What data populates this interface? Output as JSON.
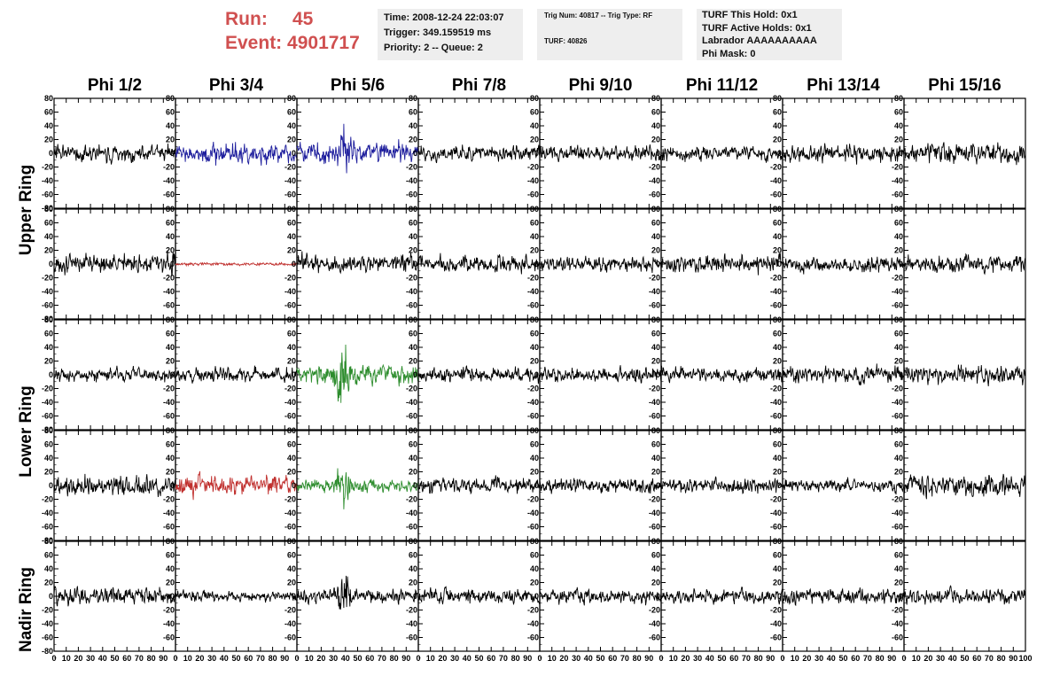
{
  "header": {
    "run_label": "Run:",
    "run_value": "45",
    "event_label": "Event:",
    "event_value": "4901717"
  },
  "info_box_1": {
    "time": "Time: 2008-12-24 22:03:07",
    "trigger": "Trigger: 349.159519 ms",
    "priority": "Priority: 2 -- Queue: 2"
  },
  "info_box_2": {
    "trig": "Trig Num: 40817 -- Trig Type: RF",
    "turf": "TURF: 40826"
  },
  "info_box_3": {
    "hold": "TURF This Hold: 0x1",
    "active": "TURF Active Holds: 0x1",
    "labrador": "Labrador AAAAAAAAAA",
    "phimask": "Phi Mask: 0"
  },
  "phi_labels": [
    "Phi 1/2",
    "Phi 3/4",
    "Phi 5/6",
    "Phi 7/8",
    "Phi 9/10",
    "Phi 11/12",
    "Phi 13/14",
    "Phi 15/16"
  ],
  "ring_labels": {
    "upper": "Upper Ring",
    "lower": "Lower Ring",
    "nadir": "Nadir Ring"
  },
  "chart_data": {
    "type": "line",
    "rows": 5,
    "cols": 8,
    "xlim": [
      0,
      100
    ],
    "ylim": [
      -80,
      80
    ],
    "x_ticks": [
      0,
      10,
      20,
      30,
      40,
      50,
      60,
      70,
      80,
      90
    ],
    "x_ticks_last": [
      0,
      10,
      20,
      30,
      40,
      50,
      60,
      70,
      80,
      90,
      100
    ],
    "y_ticks": [
      -80,
      -60,
      -40,
      -20,
      0,
      20,
      40,
      60,
      80
    ],
    "y_tick_labels_first_col": [
      "-80",
      "-60",
      "-40",
      "-20",
      "0",
      "20",
      "40",
      "60",
      "80"
    ],
    "y_tick_labels_other_cols": [
      "-60",
      "-40",
      "-20",
      "0",
      "20",
      "40",
      "60",
      "80"
    ],
    "colors": {
      "default": "#000000",
      "blue": "#1c1c9c",
      "red": "#c0302e",
      "green": "#2c8c2c"
    },
    "panels": [
      {
        "row": 0,
        "col": 0,
        "color": "default",
        "amplitude": 11,
        "burst": 0,
        "burst_center": 0,
        "seed": 1
      },
      {
        "row": 0,
        "col": 1,
        "color": "blue",
        "amplitude": 14,
        "burst": 0,
        "burst_center": 0,
        "seed": 2
      },
      {
        "row": 0,
        "col": 2,
        "color": "blue",
        "amplitude": 15,
        "burst": 20,
        "burst_center": 40,
        "seed": 3
      },
      {
        "row": 0,
        "col": 3,
        "color": "default",
        "amplitude": 10,
        "burst": 0,
        "burst_center": 0,
        "seed": 4
      },
      {
        "row": 0,
        "col": 4,
        "color": "default",
        "amplitude": 11,
        "burst": 0,
        "burst_center": 0,
        "seed": 5
      },
      {
        "row": 0,
        "col": 5,
        "color": "default",
        "amplitude": 10,
        "burst": 0,
        "burst_center": 0,
        "seed": 6
      },
      {
        "row": 0,
        "col": 6,
        "color": "default",
        "amplitude": 12,
        "burst": 0,
        "burst_center": 0,
        "seed": 7
      },
      {
        "row": 0,
        "col": 7,
        "color": "default",
        "amplitude": 14,
        "burst": 0,
        "burst_center": 0,
        "seed": 8
      },
      {
        "row": 1,
        "col": 0,
        "color": "default",
        "amplitude": 14,
        "burst": 0,
        "burst_center": 0,
        "seed": 9
      },
      {
        "row": 1,
        "col": 1,
        "color": "red",
        "amplitude": 2,
        "burst": 0,
        "burst_center": 0,
        "seed": 10
      },
      {
        "row": 1,
        "col": 2,
        "color": "default",
        "amplitude": 13,
        "burst": 0,
        "burst_center": 0,
        "seed": 11
      },
      {
        "row": 1,
        "col": 3,
        "color": "default",
        "amplitude": 12,
        "burst": 0,
        "burst_center": 0,
        "seed": 12
      },
      {
        "row": 1,
        "col": 4,
        "color": "default",
        "amplitude": 11,
        "burst": 0,
        "burst_center": 0,
        "seed": 13
      },
      {
        "row": 1,
        "col": 5,
        "color": "default",
        "amplitude": 12,
        "burst": 0,
        "burst_center": 0,
        "seed": 14
      },
      {
        "row": 1,
        "col": 6,
        "color": "default",
        "amplitude": 11,
        "burst": 0,
        "burst_center": 0,
        "seed": 15
      },
      {
        "row": 1,
        "col": 7,
        "color": "default",
        "amplitude": 12,
        "burst": 0,
        "burst_center": 0,
        "seed": 16
      },
      {
        "row": 2,
        "col": 0,
        "color": "default",
        "amplitude": 10,
        "burst": 0,
        "burst_center": 0,
        "seed": 17
      },
      {
        "row": 2,
        "col": 1,
        "color": "default",
        "amplitude": 10,
        "burst": 0,
        "burst_center": 0,
        "seed": 18
      },
      {
        "row": 2,
        "col": 2,
        "color": "green",
        "amplitude": 14,
        "burst": 38,
        "burst_center": 38,
        "seed": 19
      },
      {
        "row": 2,
        "col": 3,
        "color": "default",
        "amplitude": 10,
        "burst": 0,
        "burst_center": 0,
        "seed": 20
      },
      {
        "row": 2,
        "col": 4,
        "color": "default",
        "amplitude": 10,
        "burst": 0,
        "burst_center": 0,
        "seed": 21
      },
      {
        "row": 2,
        "col": 5,
        "color": "default",
        "amplitude": 10,
        "burst": 0,
        "burst_center": 0,
        "seed": 22
      },
      {
        "row": 2,
        "col": 6,
        "color": "default",
        "amplitude": 12,
        "burst": 0,
        "burst_center": 0,
        "seed": 23
      },
      {
        "row": 2,
        "col": 7,
        "color": "default",
        "amplitude": 12,
        "burst": 0,
        "burst_center": 0,
        "seed": 24
      },
      {
        "row": 3,
        "col": 0,
        "color": "default",
        "amplitude": 14,
        "burst": 0,
        "burst_center": 0,
        "seed": 25
      },
      {
        "row": 3,
        "col": 1,
        "color": "red",
        "amplitude": 13,
        "burst": 0,
        "burst_center": 0,
        "seed": 26
      },
      {
        "row": 3,
        "col": 2,
        "color": "green",
        "amplitude": 9,
        "burst": 30,
        "burst_center": 38,
        "seed": 27
      },
      {
        "row": 3,
        "col": 3,
        "color": "default",
        "amplitude": 11,
        "burst": 0,
        "burst_center": 0,
        "seed": 28
      },
      {
        "row": 3,
        "col": 4,
        "color": "default",
        "amplitude": 11,
        "burst": 0,
        "burst_center": 0,
        "seed": 29
      },
      {
        "row": 3,
        "col": 5,
        "color": "default",
        "amplitude": 10,
        "burst": 0,
        "burst_center": 0,
        "seed": 30
      },
      {
        "row": 3,
        "col": 6,
        "color": "default",
        "amplitude": 9,
        "burst": 0,
        "burst_center": 0,
        "seed": 31
      },
      {
        "row": 3,
        "col": 7,
        "color": "default",
        "amplitude": 15,
        "burst": 0,
        "burst_center": 0,
        "seed": 32
      },
      {
        "row": 4,
        "col": 0,
        "color": "default",
        "amplitude": 12,
        "burst": 0,
        "burst_center": 0,
        "seed": 33
      },
      {
        "row": 4,
        "col": 1,
        "color": "default",
        "amplitude": 7,
        "burst": 0,
        "burst_center": 0,
        "seed": 34
      },
      {
        "row": 4,
        "col": 2,
        "color": "default",
        "amplitude": 10,
        "burst": 25,
        "burst_center": 38,
        "seed": 35
      },
      {
        "row": 4,
        "col": 3,
        "color": "default",
        "amplitude": 10,
        "burst": 0,
        "burst_center": 0,
        "seed": 36
      },
      {
        "row": 4,
        "col": 4,
        "color": "default",
        "amplitude": 10,
        "burst": 0,
        "burst_center": 0,
        "seed": 37
      },
      {
        "row": 4,
        "col": 5,
        "color": "default",
        "amplitude": 10,
        "burst": 0,
        "burst_center": 0,
        "seed": 38
      },
      {
        "row": 4,
        "col": 6,
        "color": "default",
        "amplitude": 11,
        "burst": 0,
        "burst_center": 0,
        "seed": 39
      },
      {
        "row": 4,
        "col": 7,
        "color": "default",
        "amplitude": 12,
        "burst": 0,
        "burst_center": 0,
        "seed": 40
      }
    ]
  }
}
